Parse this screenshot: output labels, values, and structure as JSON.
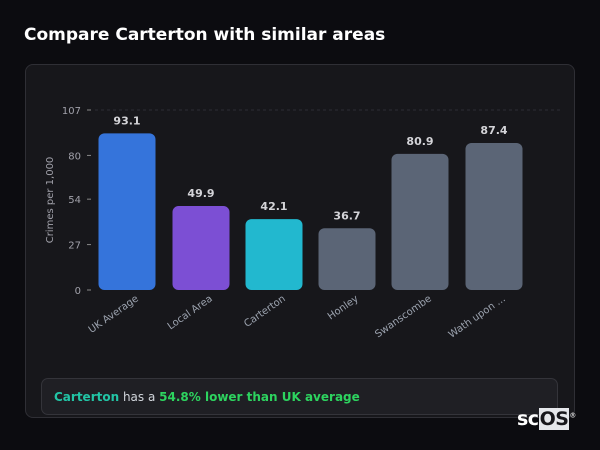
{
  "header": {
    "title": "Compare Carterton with similar areas"
  },
  "chart_data": {
    "type": "bar",
    "categories": [
      "UK Average",
      "Local Area",
      "Carterton",
      "Honley",
      "Swanscombe",
      "Wath upon ..."
    ],
    "values": [
      93.1,
      49.9,
      42.1,
      36.7,
      80.9,
      87.4
    ],
    "value_labels": [
      "93.1",
      "49.9",
      "42.1",
      "36.7",
      "80.9",
      "87.4"
    ],
    "colors": [
      "#3574db",
      "#7c4fd4",
      "#22b8cf",
      "#5b6576",
      "#5b6576",
      "#5b6576"
    ],
    "ylabel": "Crimes per 1,000",
    "xlabel": "",
    "yticks": [
      "0",
      "27",
      "54",
      "80",
      "107"
    ],
    "ytick_values": [
      0,
      27,
      54,
      80,
      107
    ],
    "ylim": [
      0,
      107
    ],
    "grid": "dashed horizontal at top tick"
  },
  "summary": {
    "area": "Carterton",
    "middle": " has a ",
    "comparison": "54.8% lower than UK average"
  },
  "logo": {
    "text_a": "sc",
    "text_b": "OS"
  }
}
